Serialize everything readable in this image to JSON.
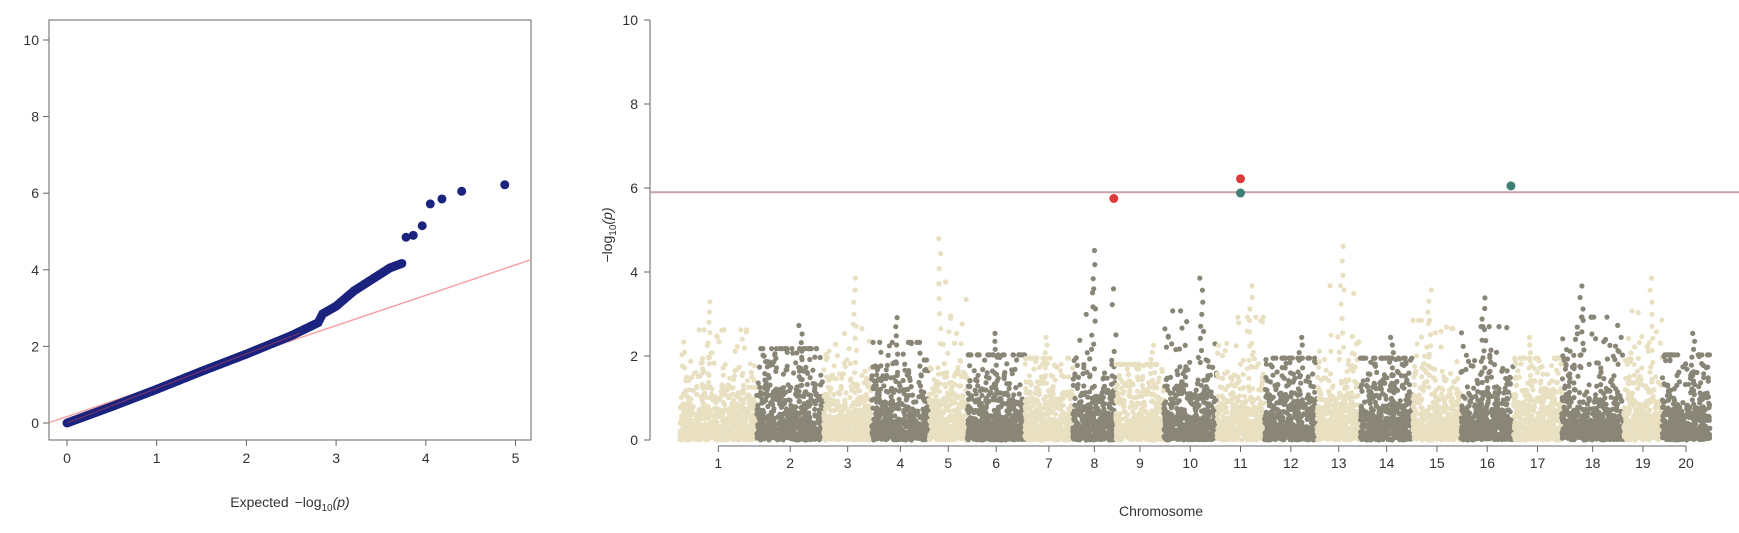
{
  "chart_data": [
    {
      "type": "scatter",
      "name": "qq-plot",
      "xlabel_prefix": "Expected",
      "xlabel_log": "−log",
      "xlabel_sub": "10",
      "xlabel_arg": "(p)",
      "ylabel": "",
      "xlim": [
        0,
        5.2
      ],
      "ylim": [
        -0.2,
        10.3
      ],
      "x_ticks": [
        0,
        1,
        2,
        3,
        4,
        5
      ],
      "y_ticks": [
        0,
        2,
        4,
        6,
        8,
        10
      ],
      "x_tick_labels": [
        "0",
        "1",
        "2",
        "3",
        "4",
        "5"
      ],
      "y_tick_labels": [
        "0",
        "2",
        "4",
        "6",
        "8",
        "10"
      ],
      "point_color": "#1a237e",
      "reference_line_color": "#f4a3a3",
      "reference_line": {
        "slope": 1,
        "intercept": 0
      },
      "curve": [
        [
          0,
          0
        ],
        [
          0.5,
          0.43
        ],
        [
          1,
          0.88
        ],
        [
          1.5,
          1.35
        ],
        [
          2,
          1.8
        ],
        [
          2.5,
          2.28
        ],
        [
          2.8,
          2.62
        ],
        [
          2.85,
          2.85
        ],
        [
          3,
          3.05
        ],
        [
          3.2,
          3.45
        ],
        [
          3.4,
          3.75
        ],
        [
          3.6,
          4.05
        ],
        [
          3.75,
          4.18
        ]
      ],
      "outliers": [
        [
          3.78,
          4.85
        ],
        [
          3.86,
          4.9
        ],
        [
          3.96,
          5.15
        ],
        [
          4.05,
          5.72
        ],
        [
          4.18,
          5.85
        ],
        [
          4.4,
          6.05
        ],
        [
          4.88,
          6.22
        ]
      ]
    },
    {
      "type": "scatter",
      "name": "manhattan-plot",
      "xlabel": "Chromosome",
      "ylabel_log": "−log",
      "ylabel_sub": "10",
      "ylabel_arg": "(p)",
      "ylim": [
        0,
        10
      ],
      "y_ticks": [
        0,
        2,
        4,
        6,
        8,
        10
      ],
      "y_tick_labels": [
        "0",
        "2",
        "4",
        "6",
        "8",
        "10"
      ],
      "chromosomes": [
        "1",
        "2",
        "3",
        "4",
        "5",
        "6",
        "7",
        "8",
        "9",
        "10",
        "11",
        "12",
        "13",
        "14",
        "15",
        "16",
        "17",
        "18",
        "19",
        "20"
      ],
      "chromosome_widths": [
        1.6,
        1.4,
        1.0,
        1.2,
        0.8,
        1.2,
        1.0,
        0.9,
        1.0,
        1.1,
        1.0,
        1.1,
        0.9,
        1.1,
        1.0,
        1.1,
        1.0,
        1.3,
        0.8,
        1.0
      ],
      "chromosome_colors": [
        "#e8e0c0",
        "#8a8677"
      ],
      "significance_threshold": 5.9,
      "threshold_color": "#c9a0aa",
      "chromosome_peaks": [
        3.5,
        2.9,
        4.1,
        3.1,
        5.1,
        2.7,
        2.6,
        4.8,
        2.4,
        4.1,
        3.9,
        2.6,
        4.9,
        2.6,
        3.8,
        3.6,
        2.6,
        3.9,
        4.1,
        2.7
      ],
      "highlighted_snps": [
        {
          "chromosome": "8",
          "position": 0.95,
          "value": 5.75,
          "color": "#dd3b3b"
        },
        {
          "chromosome": "11",
          "position": 0.5,
          "value": 6.22,
          "color": "#dd3b3b"
        },
        {
          "chromosome": "11",
          "position": 0.5,
          "value": 5.88,
          "color": "#3f7f75"
        },
        {
          "chromosome": "16",
          "position": 0.95,
          "value": 6.05,
          "color": "#3f7f75"
        }
      ]
    }
  ]
}
